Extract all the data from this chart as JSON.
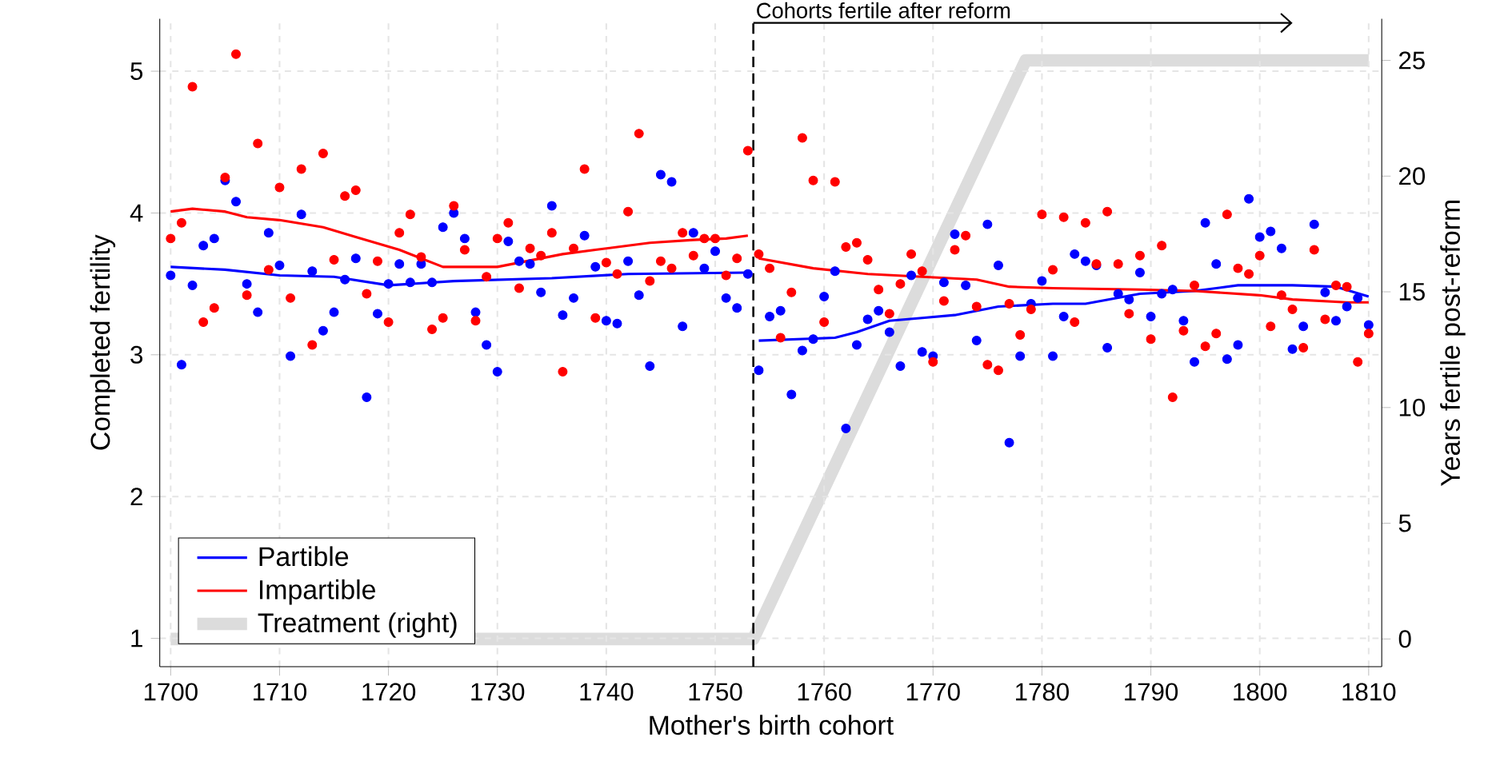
{
  "chart_data": {
    "type": "scatter",
    "xlabel": "Mother's birth cohort",
    "ylabel": "Completed fertility",
    "y2label": "Years fertile post-reform",
    "x": [
      1700,
      1701,
      1702,
      1703,
      1704,
      1705,
      1706,
      1707,
      1708,
      1709,
      1710,
      1711,
      1712,
      1713,
      1714,
      1715,
      1716,
      1717,
      1718,
      1719,
      1720,
      1721,
      1722,
      1723,
      1724,
      1725,
      1726,
      1727,
      1728,
      1729,
      1730,
      1731,
      1732,
      1733,
      1734,
      1735,
      1736,
      1737,
      1738,
      1739,
      1740,
      1741,
      1742,
      1743,
      1744,
      1745,
      1746,
      1747,
      1748,
      1749,
      1750,
      1751,
      1752,
      1753,
      1754,
      1755,
      1756,
      1757,
      1758,
      1759,
      1760,
      1761,
      1762,
      1763,
      1764,
      1765,
      1766,
      1767,
      1768,
      1769,
      1770,
      1771,
      1772,
      1773,
      1774,
      1775,
      1776,
      1777,
      1778,
      1779,
      1780,
      1781,
      1782,
      1783,
      1784,
      1785,
      1786,
      1787,
      1788,
      1789,
      1790,
      1791,
      1792,
      1793,
      1794,
      1795,
      1796,
      1797,
      1798,
      1799,
      1800,
      1801,
      1802,
      1803,
      1804,
      1805,
      1806,
      1807,
      1808,
      1809,
      1810
    ],
    "series": [
      {
        "marker": "circle",
        "color": "#0000ff",
        "values": [
          3.56,
          2.93,
          3.49,
          3.77,
          3.82,
          4.23,
          4.08,
          3.5,
          3.3,
          3.86,
          3.63,
          2.99,
          3.99,
          3.59,
          3.17,
          3.3,
          3.53,
          3.68,
          2.7,
          3.29,
          3.5,
          3.64,
          3.51,
          3.64,
          3.51,
          3.9,
          4.0,
          3.82,
          3.3,
          3.07,
          2.88,
          3.8,
          3.66,
          3.64,
          3.44,
          4.05,
          3.28,
          3.4,
          3.84,
          3.62,
          3.24,
          3.22,
          3.66,
          3.42,
          2.92,
          4.27,
          4.22,
          3.2,
          3.86,
          3.61,
          3.73,
          3.4,
          3.33,
          3.57,
          2.89,
          3.27,
          3.31,
          2.72,
          3.03,
          3.11,
          3.41,
          3.59,
          2.48,
          3.07,
          3.25,
          3.31,
          3.16,
          2.92,
          3.56,
          3.02,
          2.99,
          3.51,
          3.85,
          3.49,
          3.1,
          3.92,
          3.63,
          2.38,
          2.99,
          3.36,
          3.52,
          2.99,
          3.27,
          3.71,
          3.66,
          3.63,
          3.05,
          3.43,
          3.39,
          3.58,
          3.27,
          3.43,
          3.46,
          3.24,
          2.95,
          3.93,
          3.64,
          2.97,
          3.07,
          4.1,
          3.83,
          3.87,
          3.75,
          3.04,
          3.2,
          3.92,
          3.44,
          3.24,
          3.34,
          3.4,
          3.21
        ]
      },
      {
        "marker": "circle",
        "color": "#ff0000",
        "values": [
          3.82,
          3.93,
          4.89,
          3.23,
          3.33,
          4.25,
          5.12,
          3.42,
          4.49,
          3.6,
          4.18,
          3.4,
          4.31,
          3.07,
          4.42,
          3.67,
          4.12,
          4.16,
          3.43,
          3.66,
          3.23,
          3.86,
          3.99,
          3.69,
          3.18,
          3.26,
          4.05,
          3.74,
          3.24,
          3.55,
          3.82,
          3.93,
          3.47,
          3.75,
          3.7,
          3.86,
          2.88,
          3.75,
          4.31,
          3.26,
          3.65,
          3.57,
          4.01,
          4.56,
          3.52,
          3.66,
          3.61,
          3.86,
          3.7,
          3.82,
          3.82,
          3.56,
          3.68,
          4.44,
          3.71,
          3.61,
          3.12,
          3.44,
          4.53,
          4.23,
          3.23,
          4.22,
          3.76,
          3.79,
          3.67,
          3.46,
          3.29,
          3.5,
          3.71,
          3.59,
          2.95,
          3.38,
          3.74,
          3.84,
          3.34,
          2.93,
          2.89,
          3.36,
          3.14,
          3.32,
          3.99,
          3.6,
          3.97,
          3.23,
          3.93,
          3.64,
          4.01,
          3.64,
          3.29,
          3.7,
          3.11,
          3.77,
          2.7,
          3.17,
          3.49,
          3.06,
          3.15,
          3.99,
          3.61,
          3.57,
          3.7,
          3.2,
          3.42,
          3.32,
          3.05,
          3.74,
          3.25,
          3.49,
          3.48,
          2.95,
          3.15
        ]
      },
      {
        "type": "line",
        "name": "Partible",
        "color": "#0000ff",
        "x": [
          1700,
          1705,
          1710,
          1715,
          1720,
          1726,
          1735,
          1742,
          1753,
          1753.5,
          1754,
          1761,
          1763,
          1766,
          1769,
          1772,
          1776,
          1781,
          1784,
          1789,
          1794,
          1798,
          1803,
          1807,
          1810
        ],
        "values": [
          3.62,
          3.6,
          3.56,
          3.55,
          3.49,
          3.52,
          3.54,
          3.57,
          3.58,
          null,
          3.1,
          3.12,
          3.16,
          3.24,
          3.26,
          3.28,
          3.34,
          3.36,
          3.36,
          3.43,
          3.45,
          3.49,
          3.49,
          3.48,
          3.41
        ]
      },
      {
        "type": "line",
        "name": "Impartible",
        "color": "#ff0000",
        "x": [
          1700,
          1702,
          1705,
          1707,
          1710,
          1714,
          1717,
          1721,
          1725,
          1730,
          1736,
          1739,
          1744,
          1748,
          1751,
          1753,
          1753.5,
          1754,
          1759,
          1764,
          1769,
          1774,
          1777,
          1781,
          1789,
          1794,
          1800,
          1803,
          1808,
          1810
        ],
        "values": [
          4.01,
          4.03,
          4.01,
          3.97,
          3.95,
          3.9,
          3.83,
          3.74,
          3.62,
          3.62,
          3.71,
          3.74,
          3.79,
          3.81,
          3.82,
          3.84,
          null,
          3.68,
          3.61,
          3.57,
          3.55,
          3.53,
          3.48,
          3.47,
          3.46,
          3.45,
          3.42,
          3.39,
          3.37,
          3.37
        ]
      },
      {
        "type": "line",
        "name": "Treatment (right)",
        "color": "#dcdcdc",
        "axis": "y2",
        "x": [
          1700,
          1753.5,
          1778.5,
          1810
        ],
        "values": [
          0,
          0,
          25,
          25
        ]
      }
    ],
    "xlim": [
      1699,
      1811.2
    ],
    "xticks": [
      1700,
      1710,
      1720,
      1730,
      1740,
      1750,
      1760,
      1770,
      1780,
      1790,
      1800,
      1810
    ],
    "ylim": [
      0.8,
      5.37
    ],
    "yticks": [
      1,
      2,
      3,
      4,
      5
    ],
    "y2lim": [
      -1.2,
      26.8
    ],
    "y2ticks": [
      0,
      5,
      10,
      15,
      20,
      25
    ],
    "ref_lines": [
      {
        "axis": "x",
        "value": 1753.5,
        "color": "#000000",
        "line_style": "dashed"
      }
    ],
    "annotations": [
      "Cohorts fertile after reform"
    ],
    "grid": true,
    "legend": "bottom left"
  }
}
